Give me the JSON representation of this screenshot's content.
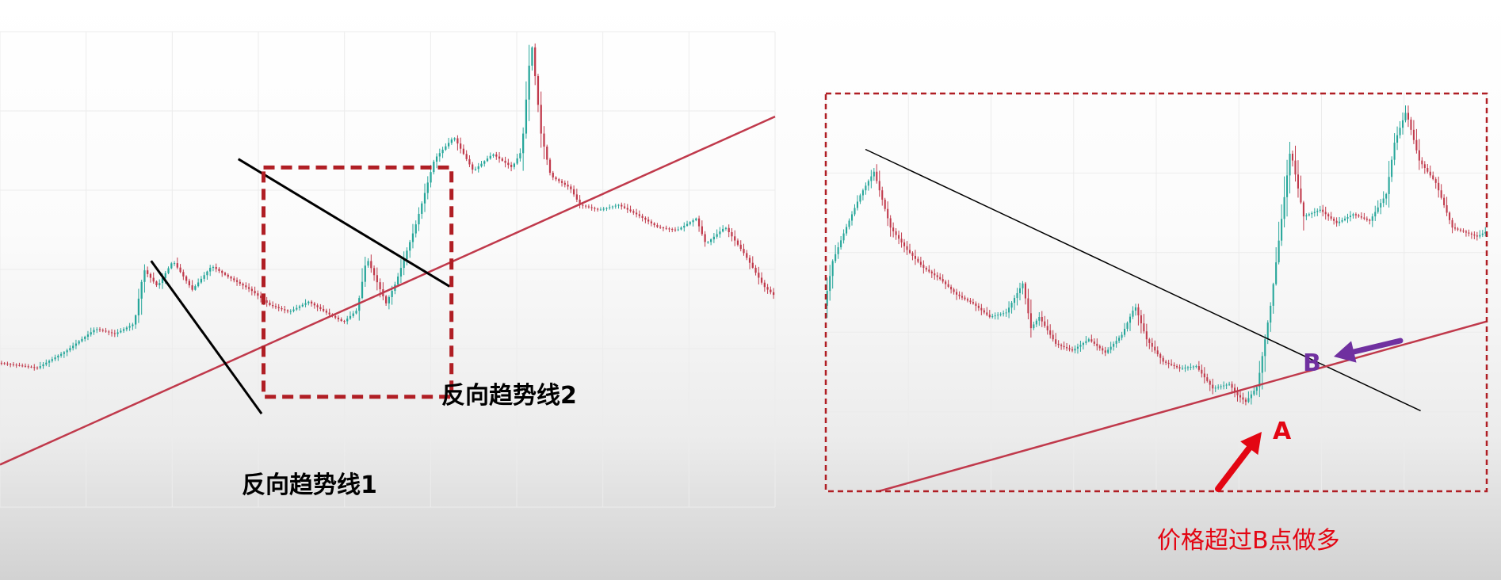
{
  "colors": {
    "up": "#26a69a",
    "down": "#c0394b",
    "support_line": "#c0394b",
    "downtrend_line": "#000000",
    "highlight_box": "#b01e24",
    "arrow_red": "#e30613",
    "arrow_purple": "#7030a0",
    "label_b": "#7030a0",
    "label_a": "#e30613",
    "caption": "#e30613",
    "grid": "#ececec"
  },
  "annotations": {
    "trendline1": "反向趋势线1",
    "trendline2": "反向趋势线2",
    "point_a": "A",
    "point_b": "B",
    "caption": "价格超过B点做多"
  },
  "chart_data": [
    {
      "type": "candlestick",
      "name": "left",
      "axes_visible": false,
      "grid": true,
      "price_path": [
        [
          0,
          8.5
        ],
        [
          20,
          8.2
        ],
        [
          35,
          9.2
        ],
        [
          50,
          10.5
        ],
        [
          60,
          10.2
        ],
        [
          70,
          10.8
        ],
        [
          75,
          14.0
        ],
        [
          82,
          13.0
        ],
        [
          90,
          14.5
        ],
        [
          100,
          12.8
        ],
        [
          110,
          14.2
        ],
        [
          118,
          13.6
        ],
        [
          130,
          12.8
        ],
        [
          140,
          11.9
        ],
        [
          150,
          11.5
        ],
        [
          160,
          12.1
        ],
        [
          170,
          11.4
        ],
        [
          178,
          10.9
        ],
        [
          185,
          11.6
        ],
        [
          190,
          14.7
        ],
        [
          200,
          12.0
        ],
        [
          205,
          13.2
        ],
        [
          215,
          16.5
        ],
        [
          225,
          20.5
        ],
        [
          235,
          21.8
        ],
        [
          245,
          19.8
        ],
        [
          255,
          20.8
        ],
        [
          265,
          20.0
        ],
        [
          270,
          21.0
        ],
        [
          275,
          27.5
        ],
        [
          280,
          22.0
        ],
        [
          285,
          19.5
        ],
        [
          295,
          18.8
        ],
        [
          300,
          17.8
        ],
        [
          310,
          17.5
        ],
        [
          320,
          17.8
        ],
        [
          330,
          17.2
        ],
        [
          340,
          16.5
        ],
        [
          350,
          16.3
        ],
        [
          360,
          17.0
        ],
        [
          365,
          15.5
        ],
        [
          375,
          16.5
        ],
        [
          385,
          14.9
        ],
        [
          395,
          13.0
        ],
        [
          400,
          12.5
        ]
      ],
      "support_line": {
        "from": [
          0,
          2.5
        ],
        "to": [
          400,
          23.0
        ]
      },
      "downtrend_lines": [
        {
          "label": "反向趋势线1",
          "from": [
            78,
            14.5
          ],
          "to": [
            135,
            5.5
          ]
        },
        {
          "label": "反向趋势线2",
          "from": [
            123,
            20.5
          ],
          "to": [
            232,
            13.0
          ]
        }
      ],
      "highlight_box": {
        "x": [
          136,
          233
        ],
        "y": [
          6.5,
          20.0
        ]
      }
    },
    {
      "type": "candlestick",
      "name": "right",
      "axes_visible": false,
      "grid": true,
      "price_path": [
        [
          0,
          12.5
        ],
        [
          5,
          14.5
        ],
        [
          12,
          15.8
        ],
        [
          22,
          17.5
        ],
        [
          30,
          18.5
        ],
        [
          40,
          16.0
        ],
        [
          50,
          15.0
        ],
        [
          60,
          14.2
        ],
        [
          70,
          13.7
        ],
        [
          80,
          13.0
        ],
        [
          90,
          12.6
        ],
        [
          100,
          12.0
        ],
        [
          110,
          12.2
        ],
        [
          120,
          13.5
        ],
        [
          125,
          11.5
        ],
        [
          130,
          12.0
        ],
        [
          140,
          10.8
        ],
        [
          150,
          10.5
        ],
        [
          160,
          11.0
        ],
        [
          170,
          10.4
        ],
        [
          180,
          11.2
        ],
        [
          188,
          12.5
        ],
        [
          195,
          11.0
        ],
        [
          205,
          10.0
        ],
        [
          215,
          9.7
        ],
        [
          225,
          9.8
        ],
        [
          235,
          8.8
        ],
        [
          245,
          9.0
        ],
        [
          250,
          8.5
        ],
        [
          255,
          8.2
        ],
        [
          262,
          8.9
        ],
        [
          270,
          12.5
        ],
        [
          276,
          16.0
        ],
        [
          282,
          19.5
        ],
        [
          290,
          16.5
        ],
        [
          300,
          16.8
        ],
        [
          310,
          16.2
        ],
        [
          320,
          16.6
        ],
        [
          330,
          16.3
        ],
        [
          340,
          17.5
        ],
        [
          345,
          19.8
        ],
        [
          352,
          21.2
        ],
        [
          360,
          19.0
        ],
        [
          370,
          18.0
        ],
        [
          380,
          16.0
        ],
        [
          395,
          15.6
        ],
        [
          400,
          15.8
        ]
      ],
      "downtrend_line": {
        "from": [
          24,
          19.5
        ],
        "to": [
          360,
          7.8
        ]
      },
      "support_line": {
        "from": [
          32,
          4.2
        ],
        "to": [
          400,
          11.8
        ]
      },
      "highlight_box": {
        "x": [
          0,
          400
        ],
        "y": [
          4.2,
          22.0
        ]
      },
      "point_a": {
        "label": "A",
        "x": 258,
        "y": 8.2
      },
      "point_b": {
        "label": "B",
        "x": 278,
        "y": 11.5
      }
    }
  ]
}
